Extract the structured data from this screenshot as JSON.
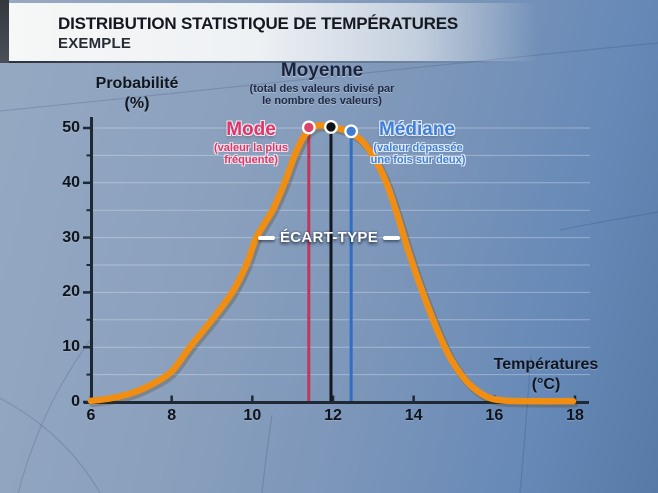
{
  "header": {
    "title": "DISTRIBUTION STATISTIQUE DE TEMPÉRATURES",
    "subtitle": "EXEMPLE"
  },
  "chart_data": {
    "type": "line",
    "title": "Distribution statistique de températures (exemple)",
    "xlabel": "Températures (°C)",
    "xlabel_line1": "Températures",
    "xlabel_line2": "(°C)",
    "ylabel": "Probabilité (%)",
    "ylabel_line1": "Probabilité",
    "ylabel_line2": "(%)",
    "xlim": [
      6,
      18
    ],
    "ylim": [
      0,
      50
    ],
    "x_ticks": [
      6,
      8,
      10,
      12,
      14,
      16,
      18
    ],
    "y_ticks": [
      0,
      10,
      20,
      30,
      40,
      50
    ],
    "grid_step": 5,
    "grid_on": true,
    "curve_color": "#ef8e13",
    "curve_points": [
      [
        6.0,
        0.2
      ],
      [
        6.5,
        0.7
      ],
      [
        7.0,
        1.6
      ],
      [
        7.5,
        3.2
      ],
      [
        8.0,
        5.6
      ],
      [
        8.45,
        10
      ],
      [
        9.0,
        15
      ],
      [
        9.5,
        20
      ],
      [
        9.85,
        25
      ],
      [
        10.1,
        30
      ],
      [
        10.5,
        35
      ],
      [
        10.8,
        40
      ],
      [
        11.05,
        45
      ],
      [
        11.3,
        48.7
      ],
      [
        11.6,
        50.4
      ],
      [
        11.95,
        50.2
      ],
      [
        12.3,
        49.6
      ],
      [
        12.6,
        48.4
      ],
      [
        12.85,
        46.5
      ],
      [
        13.1,
        43.5
      ],
      [
        13.35,
        39.5
      ],
      [
        13.6,
        34
      ],
      [
        13.85,
        28
      ],
      [
        14.1,
        22.5
      ],
      [
        14.35,
        17.5
      ],
      [
        14.65,
        12
      ],
      [
        14.95,
        7.5
      ],
      [
        15.35,
        3.5
      ],
      [
        15.8,
        1.0
      ],
      [
        16.2,
        0.3
      ],
      [
        16.8,
        0.15
      ],
      [
        17.95,
        0.15
      ]
    ],
    "markers": [
      {
        "id": "mode",
        "label": "Mode",
        "sub_lines": [
          "(valeur la plus",
          "fréquente)"
        ],
        "value": 11.4,
        "prob": 50.1,
        "color": "#dd4368",
        "line_color": "#c23659"
      },
      {
        "id": "moyenne",
        "label": "Moyenne",
        "sub_lines": [
          "(total des valeurs divisé par",
          "le nombre des valeurs)"
        ],
        "value": 11.95,
        "prob": 50.2,
        "color": "#0e1218",
        "line_color": "#14181f"
      },
      {
        "id": "mediane",
        "label": "Médiane",
        "sub_lines": [
          "(valeur dépassée",
          "une fois sur deux)"
        ],
        "value": 12.45,
        "prob": 49.4,
        "color": "#3f7cd2",
        "line_color": "#2e6ec4"
      }
    ],
    "annotations": {
      "ecart_type": "ÉCART-TYPE"
    }
  }
}
